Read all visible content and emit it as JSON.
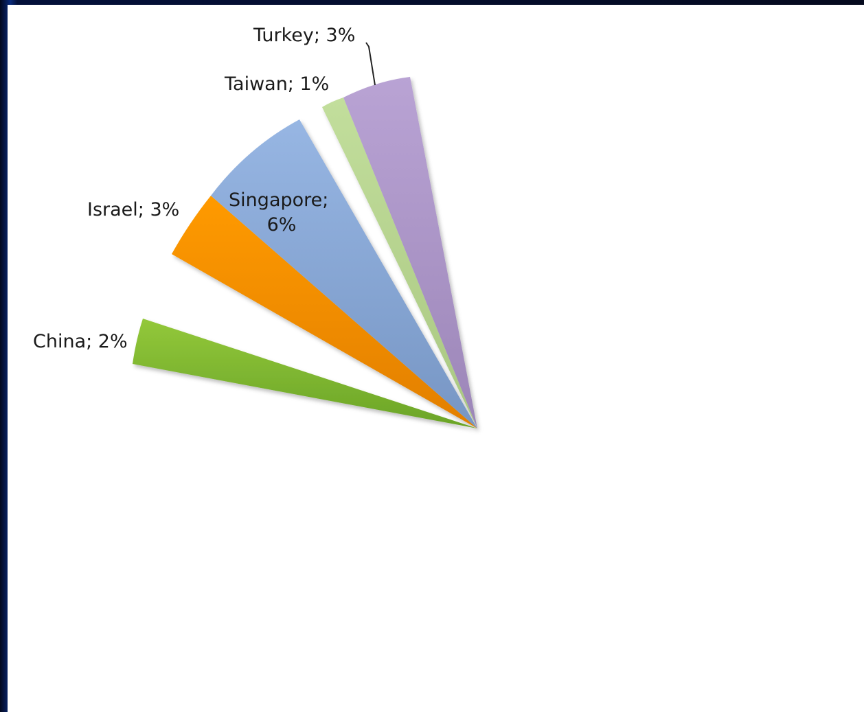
{
  "chart_data": {
    "type": "pie",
    "title": "",
    "exploded": true,
    "slices": [
      {
        "name": "China",
        "value": 2,
        "label": "China; 2%",
        "color": "#7ab52e"
      },
      {
        "name": "Israel",
        "value": 3,
        "label": "Israel; 3%",
        "color": "#f18a00"
      },
      {
        "name": "Singapore",
        "value": 6,
        "label_lines": [
          "Singapore;",
          "6%"
        ],
        "color": "#8ba9d6"
      },
      {
        "name": "Taiwan",
        "value": 1,
        "label": "Taiwan; 1%",
        "color": "#b9d691"
      },
      {
        "name": "Turkey",
        "value": 3,
        "label": "Turkey; 3%",
        "color": "#ad97c8"
      }
    ]
  }
}
